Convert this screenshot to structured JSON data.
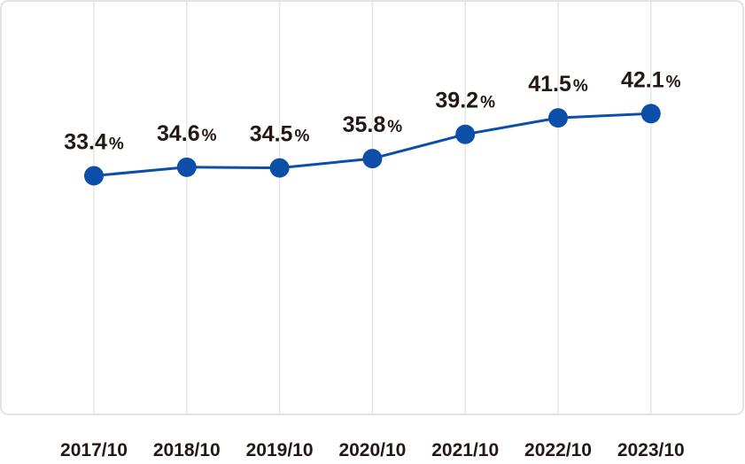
{
  "chart_data": {
    "type": "line",
    "categories": [
      "2017/10",
      "2018/10",
      "2019/10",
      "2020/10",
      "2021/10",
      "2022/10",
      "2023/10"
    ],
    "values": [
      33.4,
      34.6,
      34.5,
      35.8,
      39.2,
      41.5,
      42.1
    ],
    "data_labels": [
      "33.4",
      "34.6",
      "34.5",
      "35.8",
      "39.2",
      "41.5",
      "42.1"
    ],
    "value_suffix": "%",
    "title": "",
    "xlabel": "",
    "ylabel": "",
    "ylim": [
      0,
      58
    ],
    "grid": "vertical",
    "legend": "none",
    "colors": {
      "line": "#0d4fa8",
      "marker": "#0d4fa8",
      "grid": "#e6e6e6",
      "frame": "#d9d9d9",
      "text": "#231815"
    }
  }
}
